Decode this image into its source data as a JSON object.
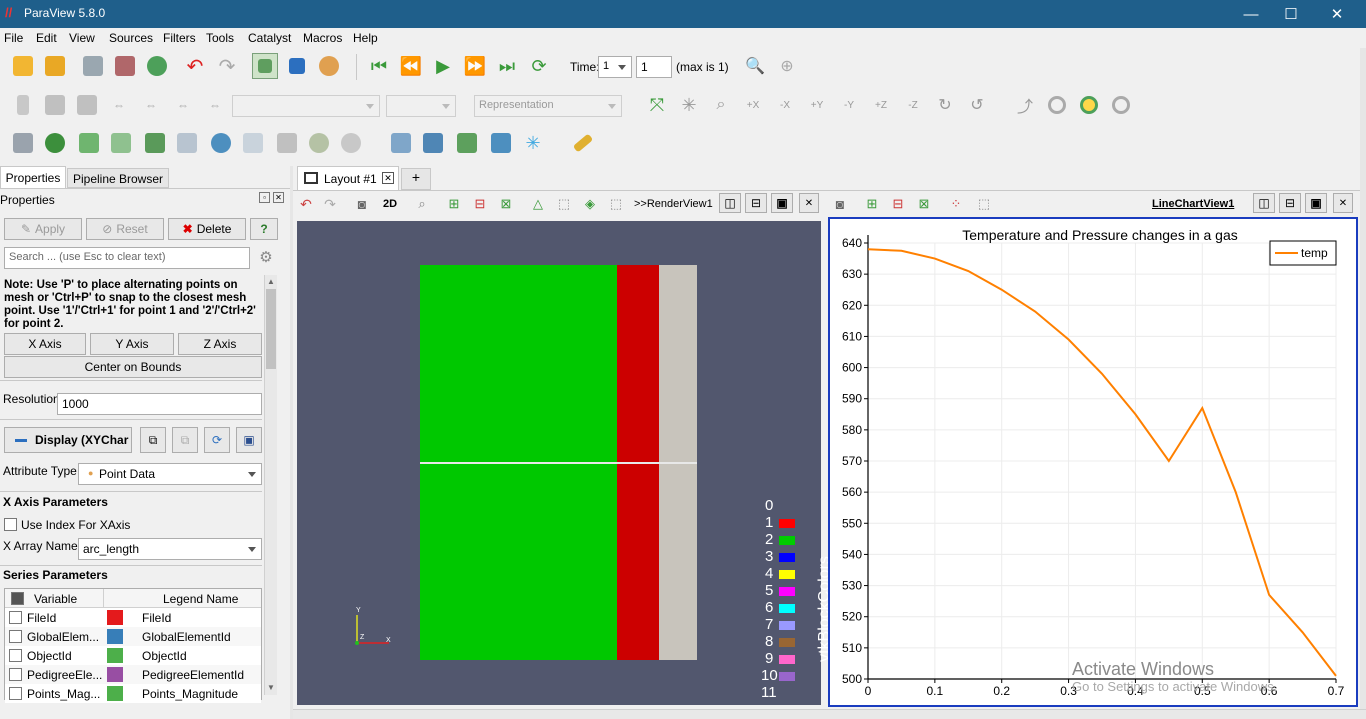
{
  "window": {
    "title": "ParaView 5.8.0",
    "minimize": "—",
    "maximize": "☐",
    "close": "✕"
  },
  "menu": [
    "File",
    "Edit",
    "View",
    "Sources",
    "Filters",
    "Tools",
    "Catalyst",
    "Macros",
    "Help"
  ],
  "toolbar": {
    "time_label": "Time:",
    "time_value": "1",
    "step_value": "1",
    "max_label": "(max is 1)",
    "representation_placeholder": "Representation"
  },
  "left_tabs": [
    "Properties",
    "Pipeline Browser"
  ],
  "properties": {
    "header": "Properties",
    "apply": "Apply",
    "reset": "Reset",
    "delete": "Delete",
    "help": "?",
    "search_placeholder": "Search ... (use Esc to clear text)",
    "note": "Note: Use 'P' to place alternating points on mesh or 'Ctrl+P' to snap to the closest mesh point. Use '1'/'Ctrl+1' for point 1 and '2'/'Ctrl+2' for point 2.",
    "x_axis": "X Axis",
    "y_axis": "Y Axis",
    "z_axis": "Z Axis",
    "center_on_bounds": "Center on Bounds",
    "resolution_label": "Resolution",
    "resolution_value": "1000",
    "display_label": "Display (XYChar",
    "attribute_type_label": "Attribute Type",
    "attribute_type_value": "Point Data",
    "x_axis_params": "X Axis Parameters",
    "use_index": "Use Index For XAxis",
    "x_array_label": "X Array Name",
    "x_array_value": "arc_length",
    "series_params": "Series Parameters",
    "series_header_variable": "Variable",
    "series_header_legend": "Legend Name",
    "series": [
      {
        "variable": "FileId",
        "legend": "FileId",
        "color": "#e41a1c"
      },
      {
        "variable": "GlobalElem...",
        "legend": "GlobalElementId",
        "color": "#377eb8"
      },
      {
        "variable": "ObjectId",
        "legend": "ObjectId",
        "color": "#4daf4a"
      },
      {
        "variable": "PedigreeEle...",
        "legend": "PedigreeElementId",
        "color": "#984ea3"
      },
      {
        "variable": "Points_Mag...",
        "legend": "Points_Magnitude",
        "color": "#4daf4a"
      }
    ]
  },
  "layout": {
    "tab": "Layout #1",
    "add": "+",
    "render_view": "RenderView1",
    "line_view": "LineChartView1",
    "btn_2d": "2D"
  },
  "render": {
    "legend_title": "vtkBlockColors",
    "legend_labels": [
      "0",
      "1",
      "2",
      "3",
      "4",
      "5",
      "6",
      "7",
      "8",
      "9",
      "10",
      "11"
    ],
    "legend_colors": [
      "#ffffff",
      "#ff0000",
      "#00cc00",
      "#0000ff",
      "#ffff00",
      "#ff00ff",
      "#00ffff",
      "#9999ff",
      "#996633",
      "#ff66cc",
      "#9966cc",
      "#ffcc99"
    ],
    "axis_y": "Y",
    "axis_z": "Z",
    "axis_x": "X"
  },
  "chart_data": {
    "type": "line",
    "title": "Temperature and Pressure changes in a gas",
    "xlabel": "",
    "ylabel": "",
    "xlim": [
      0,
      0.7
    ],
    "ylim": [
      500,
      640
    ],
    "x_ticks": [
      "0",
      "0.1",
      "0.2",
      "0.3",
      "0.4",
      "0.5",
      "0.6",
      "0.7"
    ],
    "y_ticks": [
      "500",
      "510",
      "520",
      "530",
      "540",
      "550",
      "560",
      "570",
      "580",
      "590",
      "600",
      "610",
      "620",
      "630",
      "640"
    ],
    "grid": true,
    "legend_position": "top-right",
    "series": [
      {
        "name": "temp",
        "color": "#ff8000",
        "x": [
          0,
          0.05,
          0.1,
          0.15,
          0.2,
          0.25,
          0.3,
          0.35,
          0.4,
          0.45,
          0.5,
          0.55,
          0.6,
          0.65,
          0.7
        ],
        "y": [
          638,
          637.5,
          635,
          631,
          625,
          618,
          609,
          598,
          585,
          570,
          587,
          560,
          527,
          515,
          501
        ]
      }
    ]
  },
  "watermark": {
    "line1": "Activate Windows",
    "line2": "Go to Settings to activate Windows."
  }
}
